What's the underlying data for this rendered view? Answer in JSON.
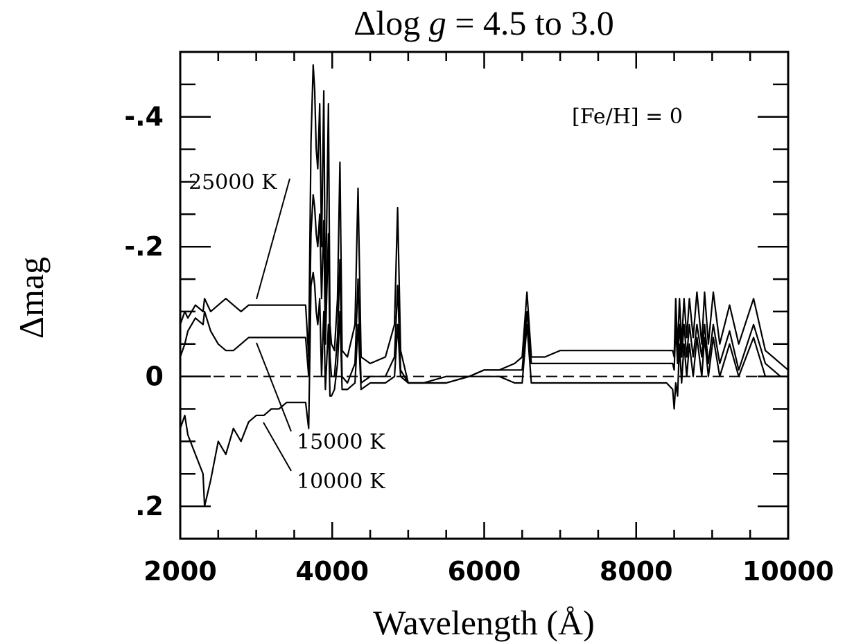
{
  "chart_data": {
    "type": "line",
    "title": "Δlog g = 4.5 to 3.0",
    "title_parts": {
      "prefix": "Δlog ",
      "italic": "g",
      "suffix": " = 4.5 to 3.0"
    },
    "xlabel": "Wavelength (Å)",
    "ylabel": "Δmag",
    "xlim": [
      2000,
      10000
    ],
    "ylim": [
      0.25,
      -0.5
    ],
    "y_inverted": true,
    "grid": false,
    "x_ticks": [
      2000,
      4000,
      6000,
      8000,
      10000
    ],
    "x_tick_labels": [
      "2000",
      "4000",
      "6000",
      "8000",
      "10000"
    ],
    "y_ticks": [
      -0.4,
      -0.2,
      0,
      0.2
    ],
    "y_tick_labels": [
      "-.4",
      "-.2",
      "0",
      ".2"
    ],
    "reference_line": {
      "y": 0,
      "style": "dashed"
    },
    "annotation": "[Fe/H] = 0",
    "series": [
      {
        "name": "25000 K",
        "x": [
          2000,
          2060,
          2100,
          2200,
          2300,
          2320,
          2400,
          2500,
          2600,
          2700,
          2800,
          2900,
          3000,
          3100,
          3200,
          3300,
          3400,
          3500,
          3650,
          3690,
          3720,
          3750,
          3770,
          3790,
          3810,
          3835,
          3860,
          3889,
          3910,
          3950,
          3970,
          3990,
          4030,
          4070,
          4102,
          4130,
          4200,
          4300,
          4340,
          4380,
          4500,
          4700,
          4820,
          4861,
          4900,
          5000,
          5200,
          5500,
          5800,
          6000,
          6200,
          6400,
          6500,
          6563,
          6620,
          6800,
          7000,
          7500,
          8000,
          8400,
          8480,
          8500,
          8520,
          8545,
          8570,
          8598,
          8630,
          8665,
          8700,
          8750,
          8800,
          8863,
          8900,
          8950,
          9015,
          9100,
          9229,
          9350,
          9545,
          9700,
          9800,
          9900,
          10000
        ],
        "y": [
          -0.08,
          -0.1,
          -0.09,
          -0.11,
          -0.1,
          -0.12,
          -0.1,
          -0.11,
          -0.12,
          -0.11,
          -0.1,
          -0.11,
          -0.11,
          -0.11,
          -0.11,
          -0.11,
          -0.11,
          -0.11,
          -0.11,
          -0.03,
          -0.36,
          -0.48,
          -0.44,
          -0.35,
          -0.32,
          -0.42,
          -0.2,
          -0.44,
          -0.1,
          -0.42,
          -0.08,
          -0.05,
          -0.04,
          -0.12,
          -0.33,
          -0.04,
          -0.03,
          -0.08,
          -0.29,
          -0.03,
          -0.02,
          -0.03,
          -0.08,
          -0.26,
          -0.04,
          0.01,
          0.01,
          0.01,
          0.0,
          -0.01,
          -0.01,
          -0.02,
          -0.03,
          -0.13,
          -0.03,
          -0.03,
          -0.04,
          -0.04,
          -0.04,
          -0.04,
          -0.04,
          -0.03,
          -0.12,
          -0.04,
          -0.12,
          -0.05,
          -0.12,
          -0.06,
          -0.12,
          -0.06,
          -0.13,
          -0.05,
          -0.13,
          -0.05,
          -0.13,
          -0.05,
          -0.11,
          -0.05,
          -0.12,
          -0.04,
          -0.03,
          -0.02,
          -0.01
        ]
      },
      {
        "name": "15000 K",
        "x": [
          2000,
          2060,
          2100,
          2200,
          2300,
          2320,
          2400,
          2500,
          2600,
          2700,
          2800,
          2900,
          3000,
          3100,
          3200,
          3300,
          3400,
          3500,
          3650,
          3690,
          3720,
          3750,
          3770,
          3790,
          3810,
          3835,
          3860,
          3889,
          3910,
          3950,
          3970,
          3990,
          4030,
          4070,
          4102,
          4130,
          4200,
          4300,
          4340,
          4380,
          4500,
          4700,
          4820,
          4861,
          4900,
          5000,
          5200,
          5500,
          5800,
          6000,
          6200,
          6400,
          6500,
          6563,
          6620,
          6800,
          7000,
          7500,
          8000,
          8400,
          8480,
          8500,
          8520,
          8545,
          8570,
          8598,
          8630,
          8665,
          8700,
          8750,
          8800,
          8863,
          8900,
          8950,
          9015,
          9100,
          9229,
          9350,
          9545,
          9700,
          9800,
          9900,
          10000
        ],
        "y": [
          -0.03,
          -0.05,
          -0.07,
          -0.09,
          -0.08,
          -0.1,
          -0.07,
          -0.05,
          -0.04,
          -0.04,
          -0.05,
          -0.06,
          -0.06,
          -0.06,
          -0.06,
          -0.06,
          -0.06,
          -0.06,
          -0.06,
          0.0,
          -0.22,
          -0.28,
          -0.26,
          -0.22,
          -0.2,
          -0.25,
          -0.12,
          -0.24,
          -0.05,
          -0.22,
          -0.03,
          0.0,
          0.0,
          -0.06,
          -0.18,
          0.0,
          0.01,
          -0.02,
          -0.15,
          0.01,
          0.0,
          0.0,
          -0.03,
          -0.14,
          -0.01,
          0.01,
          0.01,
          0.0,
          0.0,
          -0.01,
          -0.01,
          -0.01,
          -0.01,
          -0.1,
          -0.02,
          -0.02,
          -0.02,
          -0.02,
          -0.02,
          -0.02,
          -0.02,
          -0.01,
          -0.08,
          -0.02,
          -0.08,
          -0.03,
          -0.08,
          -0.03,
          -0.08,
          -0.03,
          -0.08,
          -0.03,
          -0.08,
          -0.02,
          -0.08,
          -0.02,
          -0.07,
          -0.01,
          -0.08,
          -0.02,
          -0.01,
          0.0,
          0.0
        ]
      },
      {
        "name": "10000 K",
        "x": [
          2000,
          2060,
          2100,
          2200,
          2300,
          2320,
          2400,
          2500,
          2600,
          2700,
          2800,
          2900,
          3000,
          3100,
          3200,
          3300,
          3400,
          3500,
          3650,
          3690,
          3720,
          3750,
          3770,
          3790,
          3810,
          3835,
          3860,
          3889,
          3910,
          3950,
          3970,
          3990,
          4030,
          4070,
          4102,
          4130,
          4200,
          4300,
          4340,
          4380,
          4500,
          4700,
          4820,
          4861,
          4900,
          5000,
          5200,
          5500,
          5800,
          6000,
          6200,
          6400,
          6500,
          6563,
          6620,
          6800,
          7000,
          7500,
          8000,
          8400,
          8480,
          8500,
          8520,
          8545,
          8570,
          8598,
          8630,
          8665,
          8700,
          8750,
          8800,
          8863,
          8900,
          8950,
          9015,
          9100,
          9229,
          9350,
          9545,
          9700,
          9800,
          9900,
          10000
        ],
        "y": [
          0.08,
          0.06,
          0.09,
          0.12,
          0.15,
          0.2,
          0.16,
          0.1,
          0.12,
          0.08,
          0.1,
          0.07,
          0.06,
          0.06,
          0.05,
          0.05,
          0.04,
          0.04,
          0.04,
          0.08,
          -0.14,
          -0.16,
          -0.14,
          -0.1,
          -0.08,
          -0.12,
          0.0,
          -0.1,
          0.02,
          -0.08,
          0.03,
          0.03,
          0.02,
          -0.02,
          -0.1,
          0.02,
          0.02,
          0.01,
          -0.08,
          0.02,
          0.01,
          0.01,
          0.0,
          -0.08,
          0.0,
          0.01,
          0.01,
          0.01,
          0.0,
          0.0,
          0.0,
          0.01,
          0.01,
          -0.08,
          0.01,
          0.01,
          0.01,
          0.01,
          0.01,
          0.01,
          0.02,
          0.05,
          0.01,
          0.03,
          -0.05,
          0.01,
          -0.05,
          0.0,
          -0.05,
          0.0,
          -0.06,
          0.0,
          -0.06,
          0.0,
          -0.06,
          0.0,
          -0.05,
          0.0,
          -0.06,
          0.0,
          0.0,
          0.0,
          0.0
        ]
      }
    ],
    "series_labels": [
      {
        "text": "25000 K"
      },
      {
        "text": "15000 K"
      },
      {
        "text": "10000 K"
      }
    ]
  }
}
